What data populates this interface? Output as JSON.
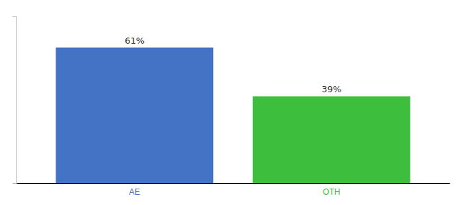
{
  "chart_data": {
    "type": "bar",
    "categories": [
      "AE",
      "OTH"
    ],
    "values": [
      61,
      39
    ],
    "value_labels": [
      "61%",
      "39%"
    ],
    "data_labels": true,
    "colors": [
      "#4472C4",
      "#3DBF3D"
    ],
    "ylim": [
      0,
      75
    ],
    "tick_labels": "x"
  }
}
